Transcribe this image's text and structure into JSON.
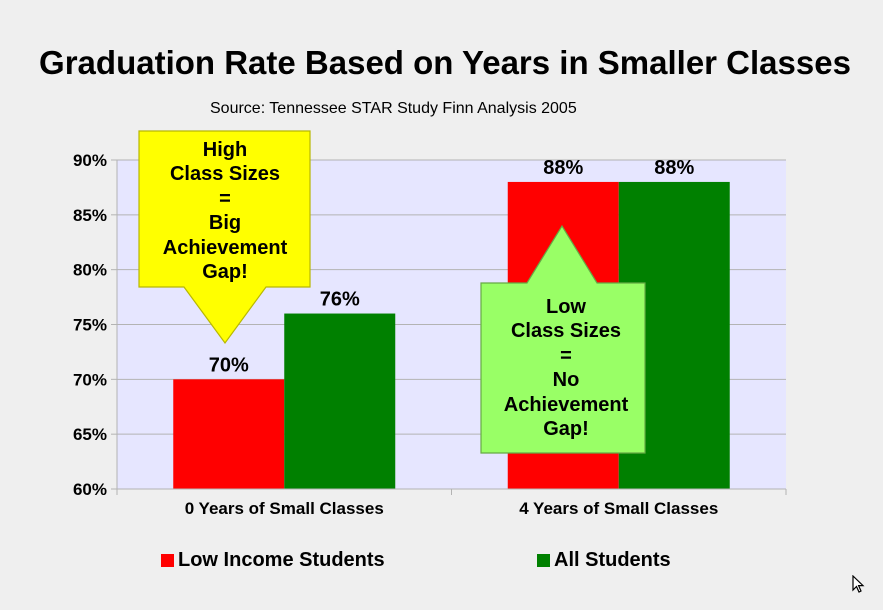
{
  "chart_data": {
    "type": "bar",
    "title": "Graduation Rate Based on Years in Smaller Classes",
    "subtitle": "Source: Tennessee STAR Study Finn Analysis 2005",
    "categories": [
      "0 Years of Small Classes",
      "4 Years of Small Classes"
    ],
    "series": [
      {
        "name": "Low Income Students",
        "color": "#ff0000",
        "values": [
          70,
          88
        ],
        "labels": [
          "70%",
          "88%"
        ]
      },
      {
        "name": "All Students",
        "color": "#008000",
        "values": [
          76,
          88
        ],
        "labels": [
          "76%",
          "88%"
        ]
      }
    ],
    "ylim": [
      60,
      90
    ],
    "yticks": [
      60,
      65,
      70,
      75,
      80,
      85,
      90
    ],
    "ytick_labels": [
      "60%",
      "65%",
      "70%",
      "75%",
      "80%",
      "85%",
      "90%"
    ],
    "xlabel": "",
    "ylabel": "",
    "grid": true,
    "legend_position": "bottom",
    "plot_background": "#e6e6ff",
    "annotations": [
      {
        "name": "high-class-sizes-callout",
        "text": "High\nClass Sizes\n=\nBig\nAchievement\nGap!",
        "color": "#ffff00",
        "arrow": "down",
        "category": "0 Years of Small Classes"
      },
      {
        "name": "low-class-sizes-callout",
        "text": "Low\nClass Sizes\n=\nNo\nAchievement\nGap!",
        "color": "#99ff66",
        "arrow": "up",
        "category": "4 Years of Small Classes"
      }
    ]
  }
}
